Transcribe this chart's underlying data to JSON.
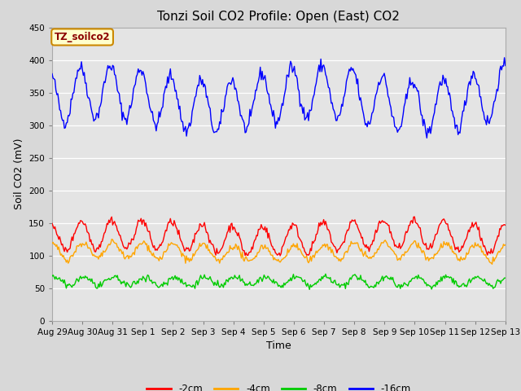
{
  "title": "Tonzi Soil CO2 Profile: Open (East) CO2",
  "xlabel": "Time",
  "ylabel": "Soil CO2 (mV)",
  "ylim": [
    0,
    450
  ],
  "yticks": [
    0,
    50,
    100,
    150,
    200,
    250,
    300,
    350,
    400,
    450
  ],
  "fig_bg_color": "#d8d8d8",
  "plot_bg_color": "#e4e4e4",
  "legend_label": "TZ_soilco2",
  "series_labels": [
    "-2cm",
    "-4cm",
    "-8cm",
    "-16cm"
  ],
  "series_colors": [
    "#ff0000",
    "#ffa500",
    "#00cc00",
    "#0000ff"
  ],
  "x_tick_labels": [
    "Aug 29",
    "Aug 30",
    "Aug 31",
    "Sep 1",
    "Sep 2",
    "Sep 3",
    "Sep 4",
    "Sep 5",
    "Sep 6",
    "Sep 7",
    "Sep 8",
    "Sep 9",
    "Sep 10",
    "Sep 11",
    "Sep 12",
    "Sep 13"
  ],
  "n_points": 480,
  "duration_days": 15,
  "title_fontsize": 11,
  "axis_label_fontsize": 9,
  "tick_fontsize": 7.5,
  "line_width": 1.0
}
